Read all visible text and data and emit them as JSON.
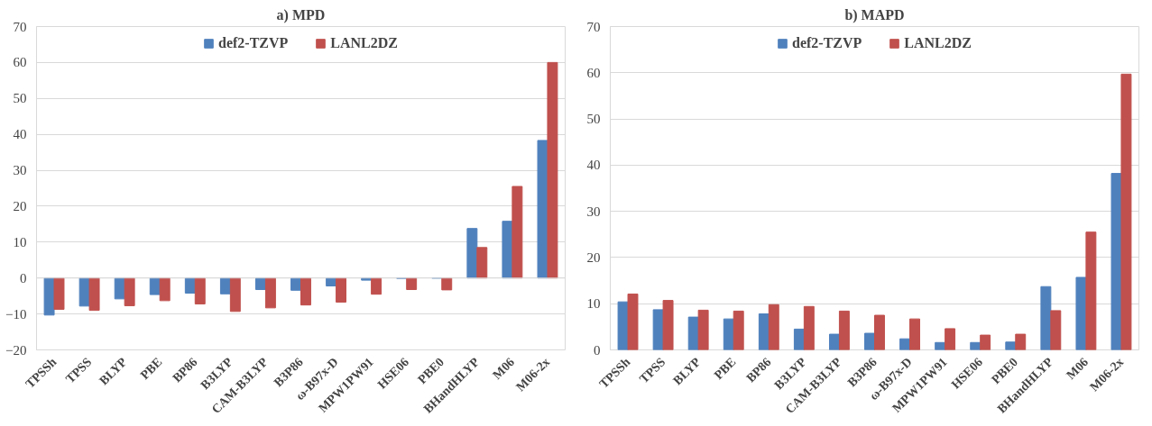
{
  "chart_data": [
    {
      "type": "bar",
      "title": "a) MPD",
      "categories": [
        "TPSSh",
        "TPSS",
        "BLYP",
        "PBE",
        "BP86",
        "B3LYP",
        "CAM-B3LYP",
        "B3P86",
        "ω-B97x-D",
        "MPW1PW91",
        "HSE06",
        "PBE0",
        "BHandHLYP",
        "M06",
        "M06-2x"
      ],
      "series": [
        {
          "name": "def2-TZVP",
          "color": "#4f81bd",
          "values": [
            -10.3,
            -7.8,
            -5.8,
            -4.6,
            -4.2,
            -4.4,
            -3.2,
            -3.4,
            -2.2,
            -0.6,
            -0.1,
            0,
            13.8,
            15.8,
            38.3
          ]
        },
        {
          "name": "LANL2DZ",
          "color": "#c0504d",
          "values": [
            -8.7,
            -9.0,
            -7.7,
            -6.3,
            -7.2,
            -9.3,
            -8.3,
            -7.5,
            -6.7,
            -4.5,
            -3.2,
            -3.3,
            8.5,
            25.5,
            60
          ]
        }
      ],
      "ylim": [
        -20,
        70
      ],
      "yticks": [
        -20,
        -10,
        0,
        10,
        20,
        30,
        40,
        50,
        60,
        70
      ],
      "grid": "y",
      "legend": "top"
    },
    {
      "type": "bar",
      "title": "b) MAPD",
      "categories": [
        "TPSSh",
        "TPSS",
        "BLYP",
        "PBE",
        "BP86",
        "B3LYP",
        "CAM-B3LYP",
        "B3P86",
        "ω-B97x-D",
        "MPW1PW91",
        "HSE06",
        "PBE0",
        "BHandHLYP",
        "M06",
        "M06-2x"
      ],
      "series": [
        {
          "name": "def2-TZVP",
          "color": "#4f81bd",
          "values": [
            10.4,
            8.7,
            7.1,
            6.7,
            7.8,
            4.5,
            3.4,
            3.6,
            2.4,
            1.6,
            1.6,
            1.7,
            13.7,
            15.7,
            38.2
          ]
        },
        {
          "name": "LANL2DZ",
          "color": "#c0504d",
          "values": [
            12.1,
            10.7,
            8.6,
            8.4,
            9.8,
            9.4,
            8.4,
            7.5,
            6.7,
            4.6,
            3.2,
            3.4,
            8.5,
            25.5,
            59.7
          ]
        }
      ],
      "ylim": [
        0,
        70
      ],
      "yticks": [
        0,
        10,
        20,
        30,
        40,
        50,
        60,
        70
      ],
      "grid": "y",
      "legend": "top"
    }
  ]
}
